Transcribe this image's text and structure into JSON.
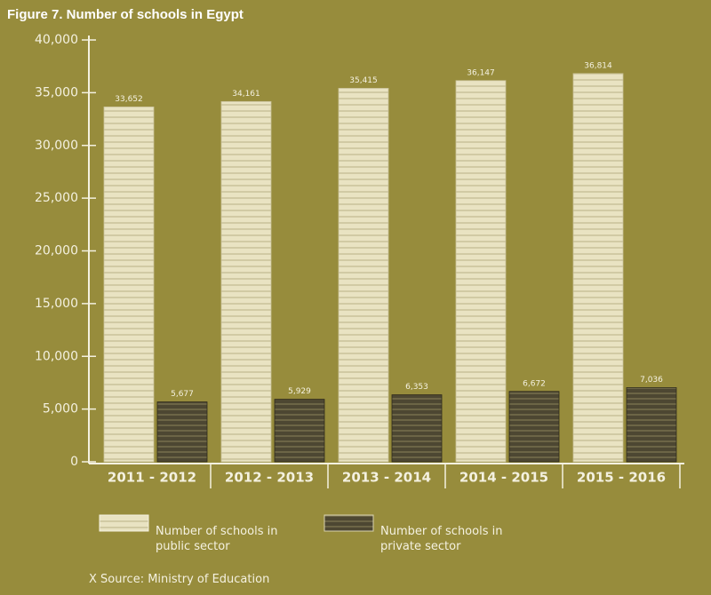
{
  "chart_data": {
    "type": "bar",
    "title": "Figure 7. Number of schools in Egypt",
    "categories": [
      "2011 - 2012",
      "2012 - 2013",
      "2013 - 2014",
      "2014 - 2015",
      "2015 - 2016"
    ],
    "series": [
      {
        "name": "Number of schools in public sector",
        "color": "#e9e3c2",
        "values": [
          33652,
          34161,
          35415,
          36147,
          36814
        ],
        "value_labels": [
          "33,652",
          "34,161",
          "35,415",
          "36,147",
          "36,814"
        ]
      },
      {
        "name": "Number of schools in private sector",
        "color": "#4d4732",
        "values": [
          5677,
          5929,
          6353,
          6672,
          7036
        ],
        "value_labels": [
          "5,677",
          "5,929",
          "6,353",
          "6,672",
          "7,036"
        ]
      }
    ],
    "ylim": [
      0,
      40000
    ],
    "yticks": [
      0,
      {
        "value": 5000,
        "label": "5,000"
      },
      {
        "value": 10000,
        "label": "10,000"
      },
      {
        "value": 15000,
        "label": "15,000"
      },
      {
        "value": 20000,
        "label": "20,000"
      },
      {
        "value": 25000,
        "label": "25,000"
      },
      {
        "value": 30000,
        "label": "30,000"
      },
      {
        "value": 35000,
        "label": "35,000"
      },
      {
        "value": 40000,
        "label": "40,000"
      }
    ],
    "source": "X Source: Ministry of Education"
  }
}
